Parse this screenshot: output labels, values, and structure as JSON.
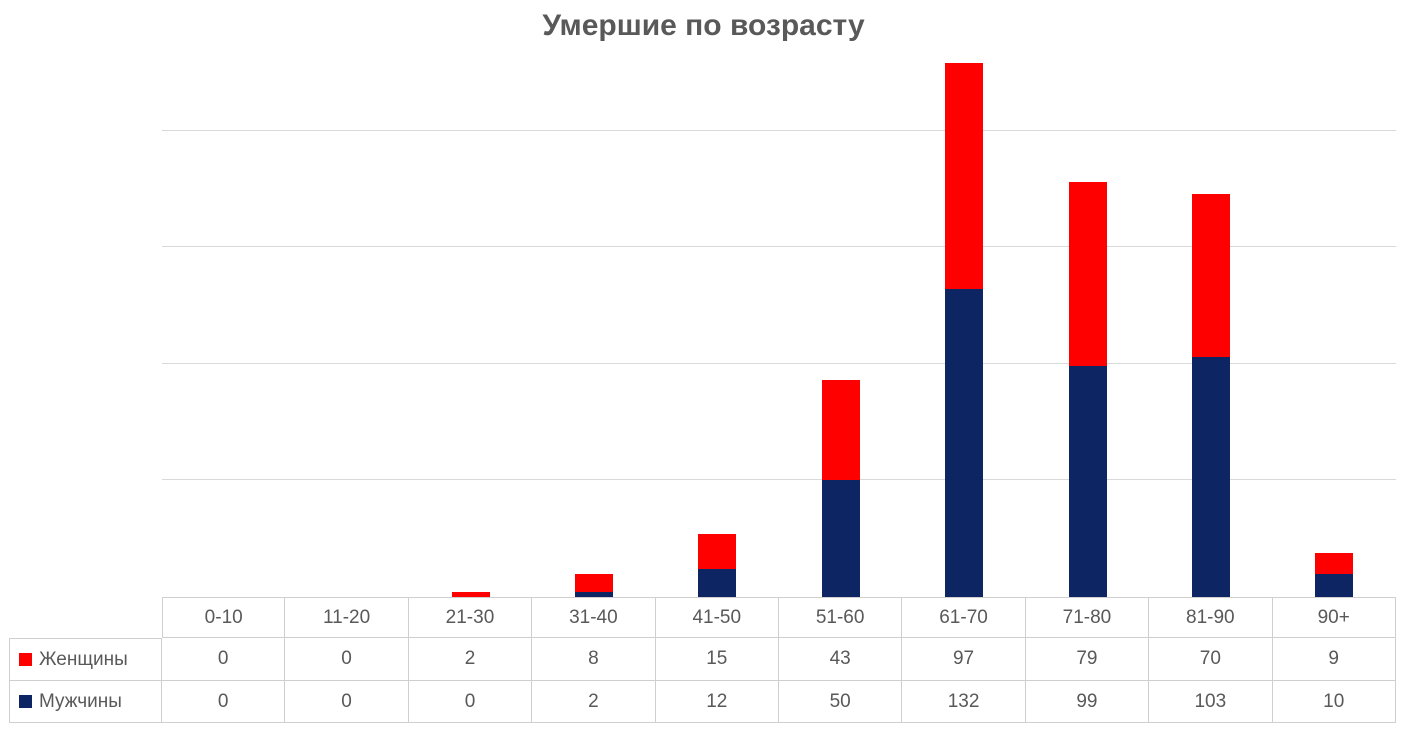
{
  "chart_data": {
    "type": "bar",
    "stacked": true,
    "title": "Умершие по возрасту",
    "categories": [
      "0-10",
      "11-20",
      "21-30",
      "31-40",
      "41-50",
      "51-60",
      "61-70",
      "71-80",
      "81-90",
      "90+"
    ],
    "series": [
      {
        "name": "Женщины",
        "color": "#FF0000",
        "values": [
          0,
          0,
          2,
          8,
          15,
          43,
          97,
          79,
          70,
          9
        ]
      },
      {
        "name": "Мужчины",
        "color": "#0D2563",
        "values": [
          0,
          0,
          0,
          2,
          12,
          50,
          132,
          99,
          103,
          10
        ]
      }
    ],
    "stack_order_bottom_to_top": [
      "Мужчины",
      "Женщины"
    ],
    "ylim": [
      0,
      229
    ],
    "gridline_values": [
      50,
      100,
      150,
      200
    ],
    "grid": true,
    "y_axis_labels_visible": false,
    "legend_position": "data-table-row-labels",
    "colors": {
      "title_text": "#595959",
      "table_text": "#595959",
      "gridline": "#D9D9D9",
      "table_border": "#D0CECE",
      "background": "#FFFFFF"
    }
  }
}
